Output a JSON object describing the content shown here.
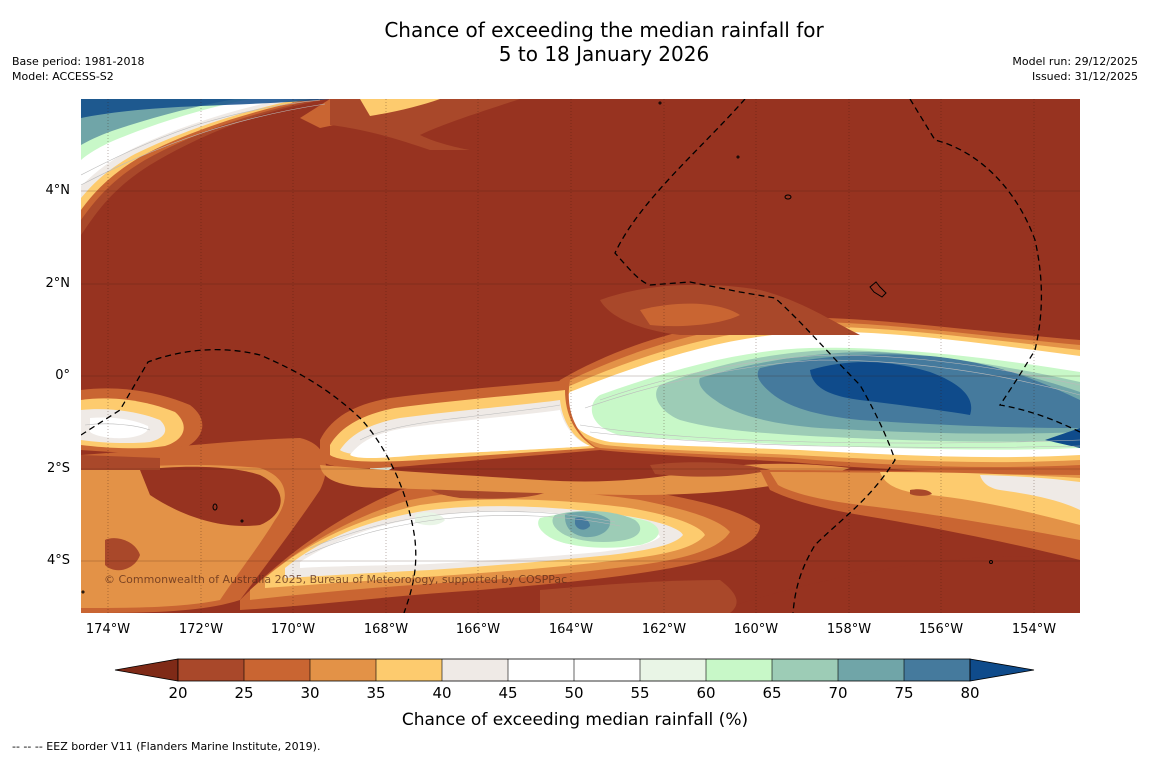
{
  "title": {
    "line1": "Chance of exceeding the median rainfall for",
    "line2": "5 to 18 January 2026"
  },
  "meta_left": {
    "base_period": "Base period: 1981-2018",
    "model": "Model: ACCESS-S2"
  },
  "meta_right": {
    "model_run": "Model run: 29/12/2025",
    "issued": "Issued: 31/12/2025"
  },
  "map": {
    "lat_labels": [
      "4°N",
      "2°N",
      "0°",
      "2°S",
      "4°S"
    ],
    "lon_labels": [
      "174°W",
      "172°W",
      "170°W",
      "168°W",
      "166°W",
      "164°W",
      "162°W",
      "160°W",
      "158°W",
      "156°W",
      "154°W"
    ],
    "copyright": "© Commonwealth of Australia 2025, Bureau of Meteorology, supported by COSPPac"
  },
  "colorbar": {
    "ticks": [
      "20",
      "25",
      "30",
      "35",
      "40",
      "45",
      "50",
      "55",
      "60",
      "65",
      "70",
      "75",
      "80"
    ],
    "colors": [
      "#7f2a17",
      "#a9482a",
      "#c96532",
      "#e39247",
      "#fdcb6e",
      "#efeae6",
      "#ffffff",
      "#ffffff",
      "#e9f5e6",
      "#c8f8c8",
      "#9dccb6",
      "#70a5a8",
      "#457a9d",
      "#0f4b8b"
    ],
    "label": "Chance of exceeding median rainfall (%)"
  },
  "footnote": "--  --  -- EEZ border V11 (Flanders Marine Institute, 2019)."
}
